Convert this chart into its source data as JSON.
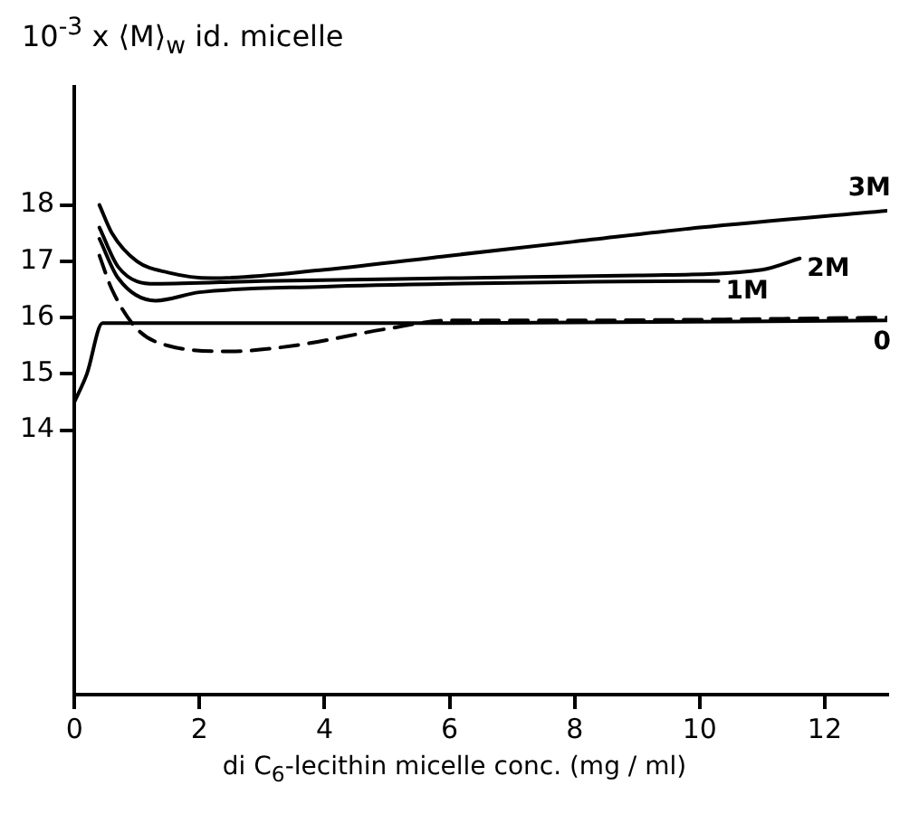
{
  "chart_data": {
    "type": "line",
    "ylabel": "10$^{-3}$ x ⟨M⟩$_{w}$ id. micelle",
    "xlabel": "di C$_{6}$-lecithin micelle conc. (mg / ml)",
    "xlim": [
      0,
      13
    ],
    "xticks": [
      0,
      2,
      4,
      6,
      8,
      10,
      12
    ],
    "ylim": [
      9.3,
      20.1
    ],
    "yticks": [
      14,
      15,
      16,
      17,
      18
    ],
    "grid": false,
    "legend": false,
    "marker": "none",
    "series": [
      {
        "name": "3M",
        "color": "#000000",
        "line_style": "solid",
        "x": [
          0.4,
          0.6,
          1,
          1.5,
          2.2,
          4,
          6,
          8,
          10,
          13
        ],
        "values": [
          18.0,
          17.5,
          17.0,
          16.8,
          16.7,
          16.85,
          17.1,
          17.35,
          17.6,
          17.9
        ]
      },
      {
        "name": "2M",
        "color": "#000000",
        "line_style": "solid",
        "x": [
          0.4,
          0.7,
          1.3,
          3,
          6,
          9,
          11,
          11.6
        ],
        "values": [
          17.6,
          16.9,
          16.6,
          16.65,
          16.7,
          16.75,
          16.85,
          17.05
        ]
      },
      {
        "name": "1M",
        "color": "#000000",
        "line_style": "solid",
        "x": [
          0.4,
          0.7,
          1.3,
          2,
          4,
          6,
          10,
          10.3
        ],
        "values": [
          17.4,
          16.7,
          16.3,
          16.45,
          16.55,
          16.6,
          16.65,
          16.65
        ]
      },
      {
        "color": "#000000",
        "line_style": "solid",
        "x": [
          0,
          0.2,
          0.45,
          1,
          6,
          13
        ],
        "values": [
          14.5,
          15.0,
          15.9,
          15.9,
          15.9,
          15.95
        ]
      },
      {
        "name": "0",
        "color": "#000000",
        "line_style": "dashed",
        "x": [
          0.4,
          0.6,
          1,
          1.5,
          2.5,
          3.5,
          5,
          6,
          8,
          13
        ],
        "values": [
          17.1,
          16.5,
          15.8,
          15.5,
          15.4,
          15.5,
          15.8,
          15.95,
          15.95,
          16.0
        ]
      }
    ]
  }
}
